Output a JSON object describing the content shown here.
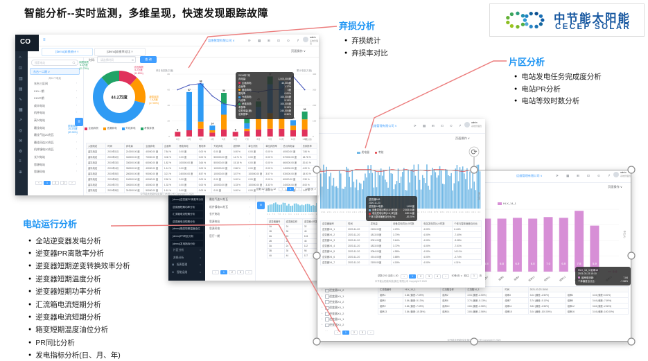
{
  "slide": {
    "title": "智能分析--实时监测，多维呈现，快速发现跟踪故障",
    "logo_cn": "中节能太阳能",
    "logo_en": "CECEP SOLAR"
  },
  "annotations": [
    {
      "id": "qisun",
      "title": "弃损分析",
      "items": [
        "弃损统计",
        "弃损率对比"
      ]
    },
    {
      "id": "pianqu",
      "title": "片区分析",
      "items": [
        "电站发电任务完成度分析",
        "电站PR分析",
        "电站等效时数分析"
      ]
    },
    {
      "id": "yunxing",
      "title": "电站运行分析",
      "items": [
        "全站逆变器发电分析",
        "逆变器PR离散率分析",
        "逆变器短期逆变转换效率分析",
        "逆变器短期温度分析",
        "逆变器短期功率分析",
        "汇流箱电流短期分析",
        "逆变器电流短期分析",
        "箱变短期温度油位分析",
        "PR同比分析",
        "发电指标分析(日、月、年)"
      ]
    }
  ],
  "common": {
    "company": "运维管理有限公司 ∨",
    "admin_name": "admin",
    "admin_role": "系统管理员",
    "page_ops": "页面操作 ∨",
    "footer": "中节能太阳能科技(镇江)有限公司 Copyright © 2020",
    "topbar_icons": [
      "refresh-icon",
      "apps-icon",
      "fullscreen-icon",
      "monitor-icon",
      "alarm-icon",
      "share-icon"
    ]
  },
  "d1": {
    "logo": "CO",
    "sidebar_icons": [
      "home-icon",
      "monitor-icon",
      "chart-icon",
      "report-icon",
      "curve-icon",
      "grid-icon",
      "trend-icon",
      "target-icon",
      "mail-icon",
      "gear-icon",
      "menu-icon",
      "plus-icon"
    ],
    "tabs": [
      {
        "label": "[demo]弃损统计",
        "close": "×",
        "active": true
      },
      {
        "label": "[demo]弃损率对比",
        "close": "×",
        "active": false
      }
    ],
    "search_placeholder": "搜索电站",
    "station_select": "东台一二期 ∨",
    "tree_note": "共24个电站",
    "stations": [
      "东台三区间",
      "010一期",
      "010二期",
      "成丰电站",
      "机井电站",
      "高兴电站",
      "最佳电站",
      "最佳气连20兆瓦",
      "最佳风连20兆瓦",
      "机井镇电20兆瓦",
      "长兴电站",
      "思源电站",
      "思源风电"
    ],
    "tree_pager": [
      "‹",
      "1",
      "2",
      "3",
      "›"
    ],
    "time_label": "时间:",
    "date_placeholder": "请选择时间",
    "query_btn": "查 询",
    "tooltip": {
      "title": "2019年7月",
      "rows": [
        [
          null,
          "弃电量",
          "1,000,000度"
        ],
        [
          "#e0315b",
          "企画弃电",
          "40,000度"
        ],
        [
          null,
          "企画率",
          "1.17%"
        ],
        [
          "#ff9800",
          "限电弃电",
          "0度"
        ],
        [
          null,
          "限电率",
          "0.00%"
        ],
        [
          "#2f9bf4",
          "外线弃电",
          "100,000度"
        ],
        [
          null,
          "外线率",
          "5.13%"
        ],
        [
          "#21a366",
          "考核弃损",
          "100,000度"
        ],
        [
          null,
          "考核率",
          "5.13%"
        ],
        [
          null,
          "总弃电量(度)",
          "240,000度"
        ],
        [
          null,
          "总弃损率",
          "8.30%"
        ]
      ]
    },
    "table": {
      "headers": [
        "入围电站",
        "时间",
        "弃电量",
        "企画弃电",
        "企画率",
        "限电弃电",
        "限电率",
        "外线弃电",
        "超停率",
        "单位济损",
        "单位弃损率",
        "总月弃电量",
        "总弃损率"
      ],
      "rows": [
        [
          "曲靖电站",
          "2019年1月",
          "210000.00 度",
          "40000.00 度",
          "7.84 %",
          "0.00 度",
          "0.00 %",
          "0.00 度",
          "0.00 %",
          "0.00 度",
          "0.00 %",
          "40000.00 度",
          "7.84 %"
        ],
        [
          "曲靖电站",
          "2019年2月",
          "340000.00 度",
          "70000.00 度",
          "3.06 %",
          "0.00 度",
          "0.00 %",
          "500000.00 度",
          "14.71 %",
          "0.00 度",
          "0.00 %",
          "570000.00 度",
          "18.78 %"
        ],
        [
          "曲靖电站",
          "2019年3月",
          "330000.00 度",
          "60000.00 度",
          "1.82 %",
          "100000.00 度",
          "3.64 %",
          "500000.00 度",
          "15.15 %",
          "0.00 度",
          "0.00 %",
          "660000.00 度",
          "20.61 %"
        ],
        [
          "曲靖电站",
          "2019年4月",
          "350000.00 度",
          "40000.00 度",
          "1.14 %",
          "0.00 度",
          "0.00 %",
          "100000.00 度",
          "2.86 %",
          "0.00 度",
          "0.00 %",
          "140000.00 度",
          "4.00 %"
        ],
        [
          "曲靖电站",
          "2019年5月",
          "280000.00 度",
          "90000.00 度",
          "3.21 %",
          "240000.00 度",
          "8.57 %",
          "100000.00 度",
          "3.57 %",
          "100000.00 度",
          "3.57 %",
          "530000.00 度",
          "18.93 %"
        ],
        [
          "曲靖电站",
          "2019年6月",
          "240000.00 度",
          "60000.00 度",
          "2.50 %",
          "0.00 度",
          "0.00 %",
          "0.00 度",
          "0.00 %",
          "0.00 度",
          "0.00 %",
          "60000.00 度",
          "2.50 %"
        ],
        [
          "曲靖电站",
          "2019年7月",
          "300000.00 度",
          "40000.00 度",
          "1.33 %",
          "0.00 度",
          "0.00 %",
          "100000.00 度",
          "3.33 %",
          "100000.00 度",
          "3.33 %",
          "240000.00 度",
          "8.00 %"
        ],
        [
          "曲靖电站",
          "2019年8月",
          "310000.00 度",
          "50000.00 度",
          "1.61 %",
          "0.00 度",
          "0.00 %",
          "0.00 度",
          "0.00 %",
          "0.00 度",
          "0.00 %",
          "50000.00 度",
          "1.61 %"
        ]
      ]
    },
    "pager_total": "总数:12 当前:1-12",
    "pager_pages": [
      "‹",
      "1",
      "›"
    ],
    "pager_size": "12条/页"
  },
  "d2": {
    "legend": [
      {
        "label": "发电量",
        "color": "#73b9e6",
        "shape": "rect"
      },
      {
        "label": "考核",
        "color": "#e23b41",
        "shape": "dot"
      }
    ],
    "axis_unit": "单位(度)",
    "ticks": "194 204 214 224 234 244 254 264 274 284 294 304 314 324 334 344 354 364 374 384 394 404 414 424 434 444 454 464 474 484 494 504 514 524 534 544 554 564",
    "tooltip": {
      "title": "逆变器548",
      "date": "2020-11-23",
      "rows": [
        [
          null,
          "逆变器X4电量",
          "1,832度"
        ],
        [
          "#73b9e6",
          "设备发电功率(0.5小时)度",
          "2,553.64度"
        ],
        [
          "#e23b41",
          "电站发电功率(0.5小时)度",
          "630.94度"
        ],
        [
          null,
          "个体与整体偏差百分比(%)",
          "-53.75%"
        ]
      ]
    },
    "table": {
      "headers": [
        "逆变器编号",
        "时间",
        "发电量",
        "设备发电同比小时数",
        "电站发电同比小时数",
        "个体与整体偏差百分比"
      ],
      "rows": [
        [
          "逆变器X4_1",
          "2020-11-20",
          "2155.00度",
          "4.29%",
          "4.00%",
          "6.44%"
        ],
        [
          "逆变器X4_2",
          "2020-11-20",
          "1813.00度",
          "3.70%",
          "4.00%",
          "-7.40%"
        ],
        [
          "逆变器X4_3",
          "2020-11-20",
          "2051.00度",
          "3.64%",
          "4.00%",
          "-3.08%"
        ],
        [
          "逆变器X4_4",
          "2020-11-20",
          "1823.00度",
          "3.72%",
          "4.00%",
          "-7.01%"
        ],
        [
          "逆变器X4_5",
          "2020-11-20",
          "2084.00度",
          "4.58%",
          "4.00%",
          "14.11%"
        ],
        [
          "逆变器X4_6",
          "2020-11-20",
          "1914.00度",
          "3.88%",
          "4.00%",
          "-2.74%"
        ],
        [
          "逆变器X4_7",
          "2020-11-20",
          "2155.00度",
          "4.18%",
          "4.00%",
          "4.11%"
        ]
      ]
    },
    "pager_total": "总数:200 当前:1-50",
    "pager_pages": [
      "‹",
      "1",
      "2",
      "3",
      "4",
      "›"
    ],
    "pager_size": "50条/页",
    "goto_label": "前往",
    "goto_value": "1",
    "goto_unit": "页"
  },
  "d3": {
    "menu": [
      {
        "label": "[demo]逆变器PR离散率分析",
        "type": "sub"
      },
      {
        "label": "逆变器短期功率分析",
        "type": "sub"
      },
      {
        "label": "汇流箱电流短期分析",
        "type": "sub"
      },
      {
        "label": "逆变器电流短期分析",
        "type": "sub"
      },
      {
        "label": "[demo]箱变短期温度油位",
        "type": "sub"
      },
      {
        "label": "[demo]PR同比分析",
        "type": "sub"
      },
      {
        "label": "[demo]发电指标分析",
        "type": "sub"
      },
      {
        "label": "片区分析",
        "type": "group"
      },
      {
        "label": "弃损分析",
        "type": "group"
      },
      {
        "label": "报表管理",
        "type": "icon",
        "icon": "report-icon"
      },
      {
        "label": "智能运维",
        "type": "icon",
        "icon": "gear-icon"
      }
    ],
    "tree": [
      "最佳气连20兆瓦",
      "机井镇电20兆瓦",
      "长兴电站",
      "思源电站",
      "思源风电",
      "官厅一期"
    ],
    "tree_pager": [
      "‹",
      "1",
      "2",
      "3",
      "›"
    ],
    "ticks": "64 70 78 84 94 104 114 124 134 144",
    "table": {
      "headers": [
        "逆变器编号",
        "逆变器名称",
        "逆变器小时数"
      ],
      "rows": [
        [
          "1A",
          "24",
          "32"
        ],
        [
          "1B",
          "26",
          "45"
        ],
        [
          "2A",
          "24",
          "104"
        ],
        [
          "2B",
          "26",
          "45"
        ],
        [
          "3A",
          "24",
          "112"
        ],
        [
          "3B",
          "30",
          "98"
        ],
        [
          "4A",
          "44",
          "117"
        ]
      ]
    }
  },
  "d4": {
    "legend": "HLX_14_1",
    "axis_unit": "单位(A)",
    "zero_label": "0.0",
    "tooltip": {
      "title": "HLX_14_1 组串13",
      "date": "2021-03-23 15:10",
      "rows": [
        [
          "#d78fd6",
          "组串电流值",
          "7.84"
        ],
        [
          null,
          "个体偏差百分比",
          "-7.58%"
        ]
      ]
    },
    "devices": [
      "逆变器X4_1",
      "逆变器X4_2",
      "逆变器X4_1",
      "逆变器X4_2",
      "逆变器X4_1",
      "逆变器X4_2",
      "逆变器X4_1",
      "逆变器X4_2"
    ],
    "dev_pager": [
      "‹",
      "1",
      "2",
      "3",
      "›"
    ],
    "table": {
      "header_cells": [
        "汇流箱编号",
        "HLX_14_1",
        "汇流箱名称",
        "汇流箱14_1",
        "时间",
        "2021-03-23 15:50"
      ],
      "rows": [
        [
          "组串1",
          "3.84 (偏差:-7.69%)",
          "组串2",
          "3.04 (偏差:-2.50%)",
          "组串3",
          "3.04 (偏差:-2.50%)",
          "组串4",
          "3.04 (偏差:0.00%)"
        ],
        [
          "组串5",
          "3.84 (偏差:-5.13%)",
          "组串6",
          "3.74 (偏差:-5.13%)",
          "组串7",
          "3.74 (偏差:-5.13%)",
          "组串8",
          "3.64 (偏差:-7.69%)"
        ],
        [
          "组串9",
          "3.84 (偏差:-7.69%)",
          "组串10",
          "3.84 (偏差:-2.56%)",
          "组串11",
          "3.84 (偏差:-2.56%)",
          "组串12",
          "3.84 (偏差:-2.56%)"
        ],
        [
          "组串13",
          "3.84 (偏差:-15.38%)",
          "组串14",
          "3.84 (偏差:-2.56%)",
          "组串15",
          "3.04 (偏差:-100.00%)",
          "组串16",
          "3.04 (偏差:-100.00%)"
        ]
      ]
    }
  },
  "chart_data": [
    {
      "id": "d1-donut",
      "type": "pie",
      "title": "弃损构成",
      "center_label": "44.2万度",
      "slices": [
        {
          "name": "计划弃损",
          "amount": "5.2万度",
          "pct": 11.8,
          "color": "#e0315b"
        },
        {
          "name": "故障弃损",
          "amount": "7.5万度",
          "pct": 17.0,
          "color": "#ff9800"
        },
        {
          "name": "限电弃损",
          "amount": "26.3万度",
          "pct": 59.5,
          "color": "#2f9bf4"
        },
        {
          "name": "网损弃损",
          "amount": "5.2万度",
          "pct": 11.7,
          "color": "#21a366"
        }
      ]
    },
    {
      "id": "d1-monthly",
      "type": "bar",
      "stacked": true,
      "title_left": "单日电量数(万度)",
      "title_right": "累计电量(万度)",
      "x_unit": "单位(度)",
      "categories": [
        "1月",
        "2月",
        "3月",
        "4月",
        "5月",
        "6月",
        "7月",
        "8月",
        "9月",
        "10月",
        "11月",
        "12月"
      ],
      "ylim_left": [
        0,
        80
      ],
      "ylim_right": [
        0,
        400
      ],
      "y_ticks_left": [
        0,
        20,
        40,
        60,
        80
      ],
      "y_ticks_right": [
        0,
        100,
        200,
        300,
        400
      ],
      "series": [
        {
          "name": "企画弃损",
          "color": "#e0315b",
          "values": [
            6,
            8,
            10,
            5,
            9,
            6,
            7,
            9,
            10,
            10,
            8,
            9
          ]
        },
        {
          "name": "遗漏弃电",
          "color": "#ff9800",
          "values": [
            0,
            0,
            9,
            3,
            19,
            0,
            3,
            14,
            20,
            14,
            6,
            13
          ]
        },
        {
          "name": "外线弃电",
          "color": "#2f9bf4",
          "values": [
            0,
            49,
            49,
            6,
            14,
            0,
            7,
            15,
            37,
            47,
            7,
            0
          ]
        },
        {
          "name": "考核弃损",
          "color": "#21a366",
          "values": [
            0,
            0,
            0,
            0,
            14,
            0,
            7,
            7,
            10,
            0,
            0,
            10
          ]
        }
      ],
      "totals": [
        6,
        57,
        68,
        14,
        56,
        6,
        24,
        45,
        77,
        71,
        21,
        32
      ],
      "line": {
        "name": "累计电量",
        "color": "#3b4db8",
        "values": [
          300,
          330,
          340,
          260,
          210,
          195,
          290,
          285,
          300,
          300,
          385,
          300
        ]
      }
    },
    {
      "id": "d2-output",
      "type": "bar",
      "bar_color": "#73b9e6",
      "line_color": "#e23b41",
      "count": 112,
      "hmin": 26,
      "hmax": 64,
      "seed": 7
    },
    {
      "id": "d4-current",
      "type": "bar",
      "bar_color": "#d78fd6",
      "ylim": [
        0,
        8
      ],
      "categories": [
        "组串1",
        "组串2",
        "组串3",
        "组串4",
        "组串5",
        "组串6",
        "组串7",
        "组串8",
        "组串9",
        "组串10",
        "组串11",
        "组串12",
        "组串13",
        "组串14",
        "组串15"
      ],
      "values": [
        6.8,
        6.8,
        6.9,
        6.8,
        6.8,
        6.9,
        6.8,
        6.8,
        6.9,
        6.8,
        7.0,
        6.9,
        7.8,
        5.9,
        0
      ]
    },
    {
      "id": "d3-mini",
      "type": "bar",
      "bar_color": "#79c8e8",
      "count": 30,
      "hmin": 9,
      "hmax": 14,
      "seed": 3
    }
  ]
}
